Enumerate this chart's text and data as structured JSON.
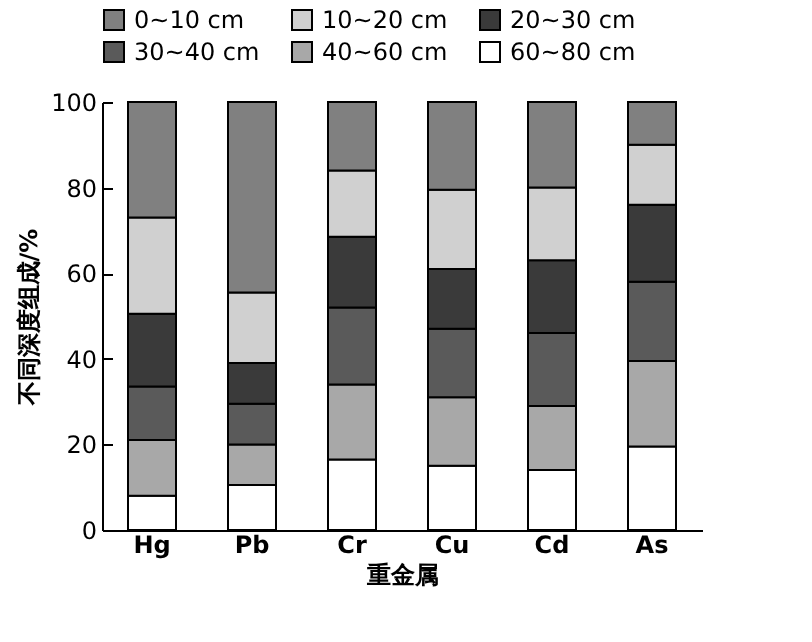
{
  "chart_data": {
    "type": "bar",
    "stacked": true,
    "xlabel": "重金属",
    "ylabel": "不同深度组成/%",
    "categories": [
      "Hg",
      "Pb",
      "Cr",
      "Cu",
      "Cd",
      "As"
    ],
    "series": [
      {
        "name": "60~80 cm",
        "color": "#ffffff",
        "values": [
          8,
          10.5,
          16.5,
          15,
          14,
          19.5
        ]
      },
      {
        "name": "40~60 cm",
        "color": "#a8a8a8",
        "values": [
          13,
          9.5,
          17.5,
          16,
          15,
          20
        ]
      },
      {
        "name": "30~40 cm",
        "color": "#5a5a5a",
        "values": [
          12.5,
          9.5,
          18,
          16,
          17,
          18.5
        ]
      },
      {
        "name": "20~30 cm",
        "color": "#3a3a3a",
        "values": [
          17,
          9.5,
          16.5,
          14,
          17,
          18
        ]
      },
      {
        "name": "10~20 cm",
        "color": "#d0d0d0",
        "values": [
          22.5,
          16.5,
          15.5,
          18.5,
          17,
          14
        ]
      },
      {
        "name": "0~10 cm",
        "color": "#808080",
        "values": [
          27,
          44.5,
          16,
          20.5,
          20,
          10
        ]
      }
    ],
    "ylim": [
      0,
      100
    ],
    "yticks": [
      0,
      20,
      40,
      60,
      80,
      100
    ],
    "legend": "top",
    "grid": false
  }
}
